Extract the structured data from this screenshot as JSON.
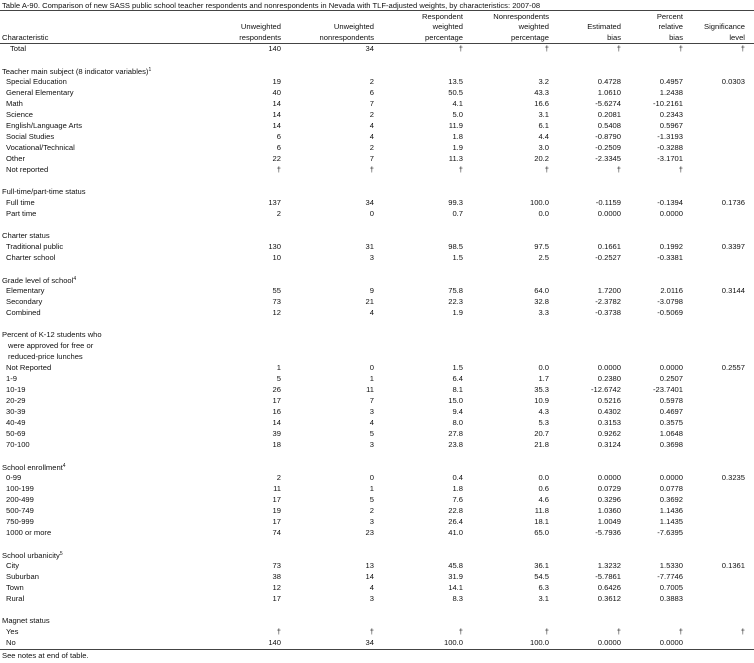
{
  "title": "Table A-90. Comparison of new SASS public school teacher respondents and nonrespondents in Nevada with TLF-adjusted weights, by characteristics: 2007-08",
  "columns": [
    [
      "Characteristic"
    ],
    [
      "Unweighted",
      "respondents"
    ],
    [
      "Unweighted",
      "nonrespondents"
    ],
    [
      "Respondent",
      "weighted",
      "percentage"
    ],
    [
      "Nonrespondents",
      "weighted",
      "percentage"
    ],
    [
      "Estimated",
      "bias"
    ],
    [
      "Percent",
      "relative",
      "bias"
    ],
    [
      "Significance",
      "level"
    ]
  ],
  "total": {
    "label": "Total",
    "values": [
      "140",
      "34",
      "†",
      "†",
      "†",
      "†",
      "†"
    ]
  },
  "sections": [
    {
      "heading": [
        "Teacher main subject (8 indicator variables)"
      ],
      "note": "1",
      "rows": [
        {
          "label": "Special Education",
          "values": [
            "19",
            "2",
            "13.5",
            "3.2",
            "0.4728",
            "0.4957",
            "0.0303"
          ]
        },
        {
          "label": "General Elementary",
          "values": [
            "40",
            "6",
            "50.5",
            "43.3",
            "1.0610",
            "1.2438"
          ]
        },
        {
          "label": "Math",
          "values": [
            "14",
            "7",
            "4.1",
            "16.6",
            "-5.6274",
            "-10.2161"
          ]
        },
        {
          "label": "Science",
          "values": [
            "14",
            "2",
            "5.0",
            "3.1",
            "0.2081",
            "0.2343"
          ]
        },
        {
          "label": "English/Language Arts",
          "values": [
            "14",
            "4",
            "11.9",
            "6.1",
            "0.5408",
            "0.5967"
          ]
        },
        {
          "label": "Social Studies",
          "values": [
            "6",
            "4",
            "1.8",
            "4.4",
            "-0.8790",
            "-1.3193"
          ]
        },
        {
          "label": "Vocational/Technical",
          "values": [
            "6",
            "2",
            "1.9",
            "3.0",
            "-0.2509",
            "-0.3288"
          ]
        },
        {
          "label": "Other",
          "values": [
            "22",
            "7",
            "11.3",
            "20.2",
            "-2.3345",
            "-3.1701"
          ]
        },
        {
          "label": "Not reported",
          "values": [
            "†",
            "†",
            "†",
            "†",
            "†",
            "†"
          ]
        }
      ]
    },
    {
      "heading": [
        "Full-time/part-time status"
      ],
      "rows": [
        {
          "label": "Full time",
          "values": [
            "137",
            "34",
            "99.3",
            "100.0",
            "-0.1159",
            "-0.1394",
            "0.1736"
          ]
        },
        {
          "label": "Part time",
          "values": [
            "2",
            "0",
            "0.7",
            "0.0",
            "0.0000",
            "0.0000"
          ]
        }
      ]
    },
    {
      "heading": [
        "Charter status"
      ],
      "rows": [
        {
          "label": "Traditional public",
          "values": [
            "130",
            "31",
            "98.5",
            "97.5",
            "0.1661",
            "0.1992",
            "0.3397"
          ]
        },
        {
          "label": "Charter school",
          "values": [
            "10",
            "3",
            "1.5",
            "2.5",
            "-0.2527",
            "-0.3381"
          ]
        }
      ]
    },
    {
      "heading": [
        "Grade level of school"
      ],
      "note": "4",
      "rows": [
        {
          "label": "Elementary",
          "values": [
            "55",
            "9",
            "75.8",
            "64.0",
            "1.7200",
            "2.0116",
            "0.3144"
          ]
        },
        {
          "label": "Secondary",
          "values": [
            "73",
            "21",
            "22.3",
            "32.8",
            "-2.3782",
            "-3.0798"
          ]
        },
        {
          "label": "Combined",
          "values": [
            "12",
            "4",
            "1.9",
            "3.3",
            "-0.3738",
            "-0.5069"
          ]
        }
      ]
    },
    {
      "heading": [
        "Percent of K-12 students who",
        "were approved for free or",
        "reduced-price lunches"
      ],
      "rows": [
        {
          "label": "Not Reported",
          "values": [
            "1",
            "0",
            "1.5",
            "0.0",
            "0.0000",
            "0.0000",
            "0.2557"
          ]
        },
        {
          "label": "1-9",
          "values": [
            "5",
            "1",
            "6.4",
            "1.7",
            "0.2380",
            "0.2507"
          ]
        },
        {
          "label": "10-19",
          "values": [
            "26",
            "11",
            "8.1",
            "35.3",
            "-12.6742",
            "-23.7401"
          ]
        },
        {
          "label": "20-29",
          "values": [
            "17",
            "7",
            "15.0",
            "10.9",
            "0.5216",
            "0.5978"
          ]
        },
        {
          "label": "30-39",
          "values": [
            "16",
            "3",
            "9.4",
            "4.3",
            "0.4302",
            "0.4697"
          ]
        },
        {
          "label": "40-49",
          "values": [
            "14",
            "4",
            "8.0",
            "5.3",
            "0.3153",
            "0.3575"
          ]
        },
        {
          "label": "50-69",
          "values": [
            "39",
            "5",
            "27.8",
            "20.7",
            "0.9262",
            "1.0648"
          ]
        },
        {
          "label": "70-100",
          "values": [
            "18",
            "3",
            "23.8",
            "21.8",
            "0.3124",
            "0.3698"
          ]
        }
      ]
    },
    {
      "heading": [
        "School enrollment"
      ],
      "note": "4",
      "rows": [
        {
          "label": "0-99",
          "values": [
            "2",
            "0",
            "0.4",
            "0.0",
            "0.0000",
            "0.0000",
            "0.3235"
          ]
        },
        {
          "label": "100-199",
          "values": [
            "11",
            "1",
            "1.8",
            "0.6",
            "0.0729",
            "0.0778"
          ]
        },
        {
          "label": "200-499",
          "values": [
            "17",
            "5",
            "7.6",
            "4.6",
            "0.3296",
            "0.3692"
          ]
        },
        {
          "label": "500-749",
          "values": [
            "19",
            "2",
            "22.8",
            "11.8",
            "1.0360",
            "1.1436"
          ]
        },
        {
          "label": "750-999",
          "values": [
            "17",
            "3",
            "26.4",
            "18.1",
            "1.0049",
            "1.1435"
          ]
        },
        {
          "label": "1000 or more",
          "values": [
            "74",
            "23",
            "41.0",
            "65.0",
            "-5.7936",
            "-7.6395"
          ]
        }
      ]
    },
    {
      "heading": [
        "School urbanicity"
      ],
      "note": "5",
      "rows": [
        {
          "label": "City",
          "values": [
            "73",
            "13",
            "45.8",
            "36.1",
            "1.3232",
            "1.5330",
            "0.1361"
          ]
        },
        {
          "label": "Suburban",
          "values": [
            "38",
            "14",
            "31.9",
            "54.5",
            "-5.7861",
            "-7.7746"
          ]
        },
        {
          "label": "Town",
          "values": [
            "12",
            "4",
            "14.1",
            "6.3",
            "0.6426",
            "0.7005"
          ]
        },
        {
          "label": "Rural",
          "values": [
            "17",
            "3",
            "8.3",
            "3.1",
            "0.3612",
            "0.3883"
          ]
        }
      ]
    },
    {
      "heading": [
        "Magnet status"
      ],
      "rows": [
        {
          "label": "Yes",
          "values": [
            "†",
            "†",
            "†",
            "†",
            "†",
            "†",
            "†"
          ]
        },
        {
          "label": "No",
          "values": [
            "140",
            "34",
            "100.0",
            "100.0",
            "0.0000",
            "0.0000"
          ]
        }
      ]
    }
  ],
  "footer": "See notes at end of table."
}
